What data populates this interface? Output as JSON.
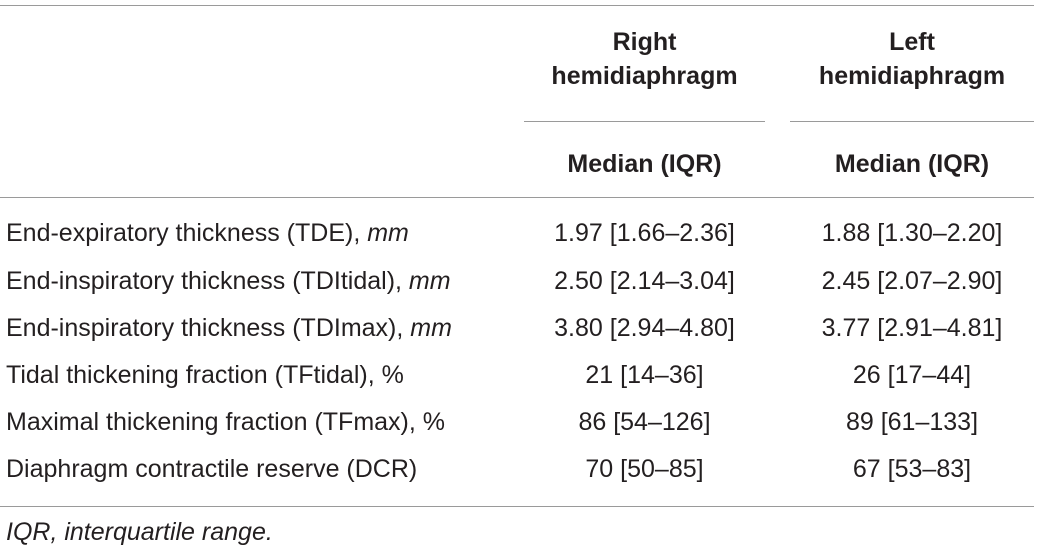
{
  "table": {
    "columns": [
      {
        "header": "Right hemidiaphragm",
        "subheader": "Median (IQR)"
      },
      {
        "header": "Left hemidiaphragm",
        "subheader": "Median (IQR)"
      }
    ],
    "rows": [
      {
        "label": "End-expiratory thickness (TDE), ",
        "unit": "mm",
        "right": "1.97 [1.66–2.36]",
        "left": "1.88 [1.30–2.20]"
      },
      {
        "label": "End-inspiratory thickness (TDItidal), ",
        "unit": "mm",
        "right": "2.50 [2.14–3.04]",
        "left": "2.45 [2.07–2.90]"
      },
      {
        "label": "End-inspiratory thickness (TDImax), ",
        "unit": "mm",
        "right": "3.80 [2.94–4.80]",
        "left": "3.77 [2.91–4.81]"
      },
      {
        "label": "Tidal thickening fraction (TFtidal), %",
        "unit": "",
        "right": "21 [14–36]",
        "left": "26 [17–44]"
      },
      {
        "label": "Maximal thickening fraction (TFmax), %",
        "unit": "",
        "right": "86 [54–126]",
        "left": "89 [61–133]"
      },
      {
        "label": "Diaphragm contractile reserve (DCR)",
        "unit": "",
        "right": "70 [50–85]",
        "left": "67 [53–83]"
      }
    ],
    "footnote": "IQR, interquartile range."
  }
}
